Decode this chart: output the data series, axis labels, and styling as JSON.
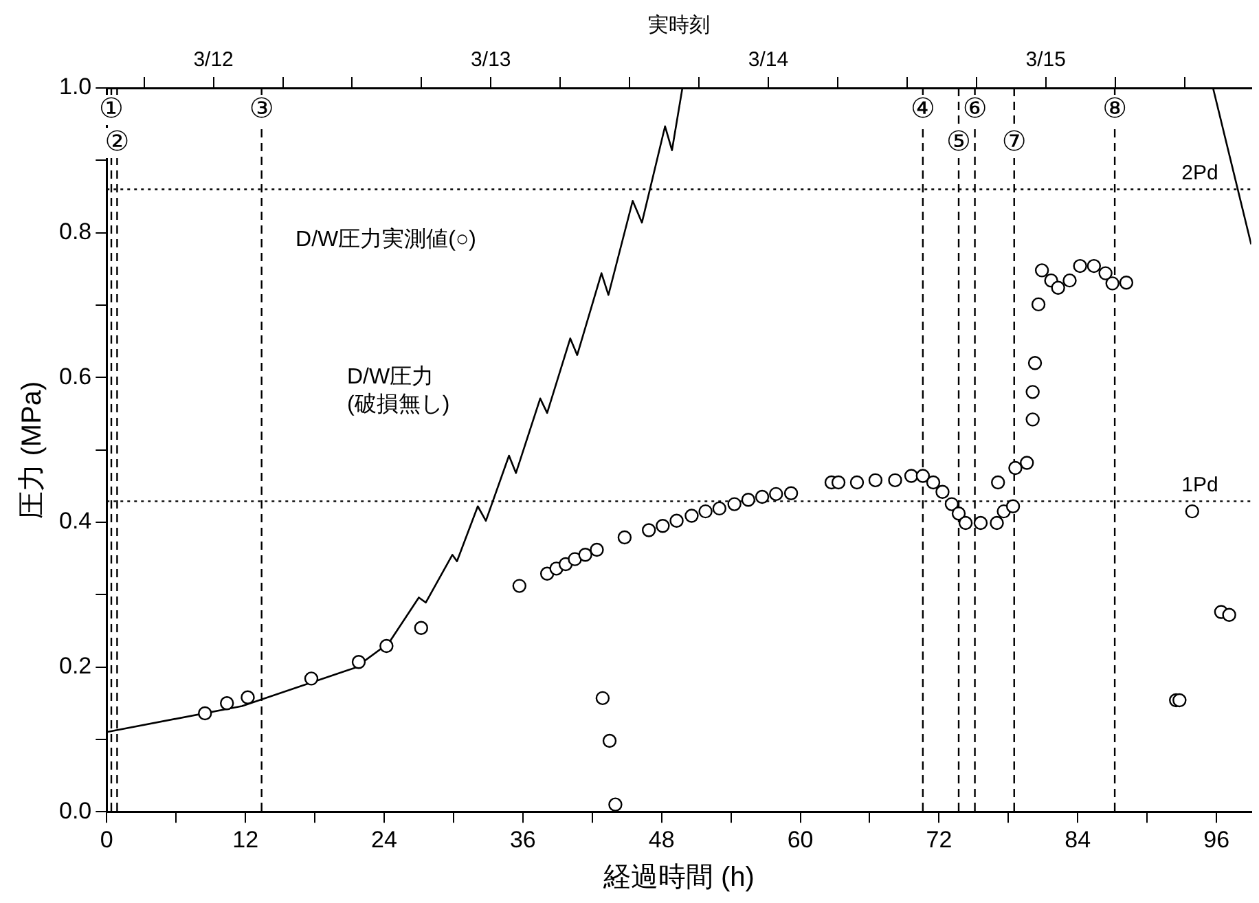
{
  "chart_data": {
    "type": "scatter",
    "xlabel": "経過時間 (h)",
    "ylabel": "圧力 (MPa)",
    "x2label": "実時刻",
    "xlim": [
      0,
      99
    ],
    "ylim": [
      0,
      1.0
    ],
    "xticks": [
      0,
      {
        "value": 6,
        "label": null
      },
      12,
      {
        "value": 18,
        "label": null
      },
      24,
      {
        "value": 30,
        "label": null
      },
      36,
      {
        "value": 42,
        "label": null
      },
      48,
      {
        "value": 54,
        "label": null
      },
      60,
      {
        "value": 66,
        "label": null
      },
      72,
      {
        "value": 78,
        "label": null
      },
      84,
      {
        "value": 90,
        "label": null
      },
      96
    ],
    "yticks": [
      {
        "value": 0,
        "label": "0.0"
      },
      {
        "value": 0.1,
        "label": null
      },
      0.2,
      {
        "value": 0.3,
        "label": null
      },
      0.4,
      {
        "value": 0.5,
        "label": null
      },
      0.6,
      {
        "value": 0.7,
        "label": null
      },
      0.8,
      {
        "value": 0.9,
        "label": null
      },
      {
        "value": 1.0,
        "label": "1.0"
      }
    ],
    "x2lim": [
      "--03-11T14:46",
      "--03-15T17:46"
    ],
    "x2ticks": [
      {
        "value": "--03-11T18:00",
        "label": null
      },
      {
        "value": "--03-12",
        "label": "3/12"
      },
      {
        "value": "--03-12T06:00",
        "label": null
      },
      {
        "value": "--03-12T12:00",
        "label": null
      },
      {
        "value": "--03-12T18:00",
        "label": null
      },
      {
        "value": "--03-13",
        "label": "3/13"
      },
      {
        "value": "--03-13T06:00",
        "label": null
      },
      {
        "value": "--03-13T12:00",
        "label": null
      },
      {
        "value": "--03-13T18:00",
        "label": null
      },
      {
        "value": "--03-14",
        "label": "3/14"
      },
      {
        "value": "--03-14T06:00",
        "label": null
      },
      {
        "value": "--03-14T12:00",
        "label": null
      },
      {
        "value": "--03-14T18:00",
        "label": null
      },
      {
        "value": "--03-15",
        "label": "3/15"
      },
      {
        "value": "--03-15T06:00",
        "label": null
      },
      {
        "value": "--03-15T12:00",
        "label": null
      }
    ],
    "grid": false,
    "legend": false,
    "series": [
      {
        "type": "line",
        "color": "#000000",
        "marker": "none",
        "line_style": "solid",
        "x": [
          0,
          11.7,
          21.5,
          24.4,
          27.0,
          27.6,
          29.9,
          30.3,
          32.1,
          32.8,
          34.8,
          35.4,
          37.5,
          38.1,
          40.1,
          40.7,
          42.8,
          43.4,
          45.5,
          46.3,
          48.3,
          48.9,
          49.8
        ],
        "values": [
          0.11,
          0.146,
          0.199,
          0.233,
          0.296,
          0.289,
          0.355,
          0.346,
          0.422,
          0.402,
          0.492,
          0.468,
          0.571,
          0.551,
          0.654,
          0.631,
          0.744,
          0.714,
          0.844,
          0.814,
          0.947,
          0.914,
          1.0
        ]
      },
      {
        "type": "line",
        "color": "#000000",
        "marker": "none",
        "line_style": "solid",
        "x": [
          95.7,
          99
        ],
        "values": [
          1.0,
          0.784
        ]
      },
      {
        "type": "scatter",
        "color": "#000000",
        "marker": "circle",
        "x": [
          8.5,
          10.4,
          12.2,
          17.7,
          21.8,
          24.2,
          27.2,
          35.7,
          38.1,
          38.9,
          39.7,
          40.5,
          41.4,
          42.4,
          42.9,
          43.5,
          44.0,
          44.8,
          46.9,
          48.1,
          49.3,
          50.6,
          51.8,
          53.0,
          54.3,
          55.5,
          56.7,
          57.9,
          59.2,
          62.7,
          63.3,
          64.9,
          66.5,
          68.2,
          69.6,
          70.6,
          71.5,
          72.3,
          73.1,
          73.7,
          74.3,
          75.6,
          77.0,
          77.6,
          78.4,
          77.1,
          78.6,
          79.6,
          80.1,
          80.1,
          80.3,
          80.6,
          80.9,
          81.7,
          82.3,
          83.3,
          84.2,
          85.4,
          86.4,
          87.0,
          88.2,
          93.9,
          92.5,
          92.8,
          96.4,
          97.1
        ],
        "values": [
          0.136,
          0.15,
          0.158,
          0.184,
          0.207,
          0.229,
          0.254,
          0.312,
          0.329,
          0.336,
          0.342,
          0.349,
          0.355,
          0.362,
          0.157,
          0.098,
          0.01,
          0.379,
          0.389,
          0.395,
          0.402,
          0.409,
          0.415,
          0.419,
          0.425,
          0.431,
          0.435,
          0.439,
          0.44,
          0.455,
          0.455,
          0.455,
          0.458,
          0.458,
          0.464,
          0.464,
          0.455,
          0.442,
          0.425,
          0.412,
          0.399,
          0.399,
          0.399,
          0.415,
          0.422,
          0.455,
          0.475,
          0.482,
          0.542,
          0.58,
          0.62,
          0.701,
          0.748,
          0.734,
          0.724,
          0.734,
          0.754,
          0.754,
          0.744,
          0.73,
          0.731,
          0.415,
          0.154,
          0.154,
          0.276,
          0.272
        ]
      }
    ],
    "ref_lines": [
      {
        "axis": "x",
        "value": 0.4,
        "label": "①",
        "color": "#000000",
        "line_style": "dashed"
      },
      {
        "axis": "x",
        "value": 0.9,
        "label": "②",
        "color": "#000000",
        "line_style": "dashed"
      },
      {
        "axis": "x",
        "value": 13.4,
        "label": "③",
        "color": "#000000",
        "line_style": "dashed"
      },
      {
        "axis": "x",
        "value": 70.6,
        "label": "④",
        "color": "#000000",
        "line_style": "dashed"
      },
      {
        "axis": "x",
        "value": 73.7,
        "label": "⑤",
        "color": "#000000",
        "line_style": "dashed"
      },
      {
        "axis": "x",
        "value": 75.1,
        "label": "⑥",
        "color": "#000000",
        "line_style": "dashed"
      },
      {
        "axis": "x",
        "value": 78.5,
        "label": "⑦",
        "color": "#000000",
        "line_style": "dashed"
      },
      {
        "axis": "x",
        "value": 87.2,
        "label": "⑧",
        "color": "#000000",
        "line_style": "dashed"
      },
      {
        "axis": "y",
        "value": 0.86,
        "label": "2Pd",
        "color": "#000000",
        "line_style": "dotted"
      },
      {
        "axis": "y",
        "value": 0.429,
        "label": "1Pd",
        "color": "#000000",
        "line_style": "dotted"
      }
    ],
    "annotations": [
      "D/W圧力実測値(○)",
      "D/W圧力\n(破損無し)"
    ]
  }
}
